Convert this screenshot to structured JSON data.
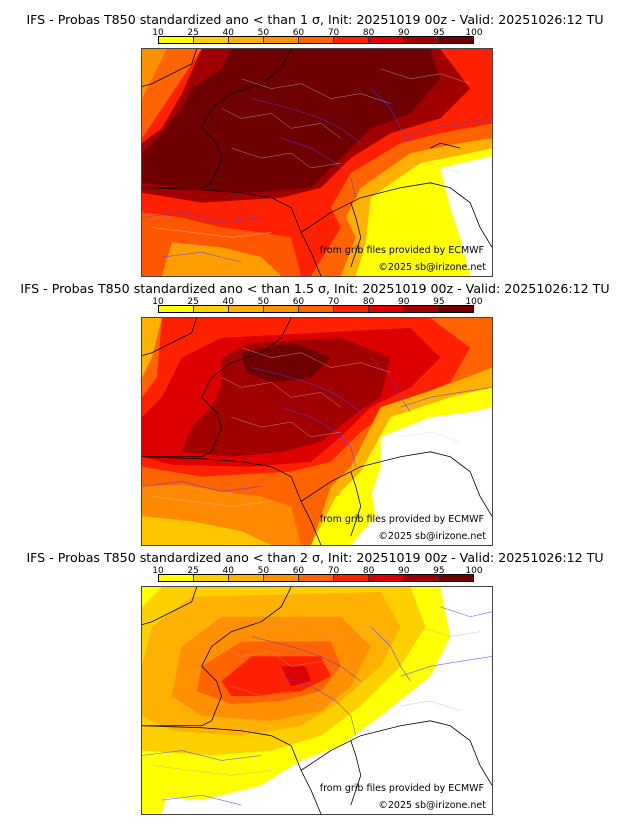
{
  "colorbar": {
    "labels": [
      "10",
      "25",
      "40",
      "50",
      "60",
      "70",
      "80",
      "90",
      "95",
      "100"
    ],
    "colors": [
      "#ffff00",
      "#ffd000",
      "#ffb000",
      "#ff9000",
      "#ff6400",
      "#ff2000",
      "#dc0000",
      "#a00000",
      "#6e0000"
    ]
  },
  "panels": [
    {
      "title": "IFS - Probas T850  standardized ano < than 1 σ, Init: 20251019 00z - Valid: 20251026:12 TU",
      "threshold": "1 σ",
      "credit_source": "from grib files provided by ECMWF",
      "credit_copyright": "©2025 sb@irizone.net"
    },
    {
      "title": "IFS - Probas T850  standardized ano < than 1.5 σ, Init: 20251019 00z - Valid: 20251026:12 TU",
      "threshold": "1.5 σ",
      "credit_source": "from grib files provided by ECMWF",
      "credit_copyright": "©2025 sb@irizone.net"
    },
    {
      "title": "IFS - Probas T850  standardized ano < than 2 σ, Init: 20251019 00z - Valid: 20251026:12 TU",
      "threshold": "2 σ",
      "credit_source": "from grib files provided by ECMWF",
      "credit_copyright": "©2025 sb@irizone.net"
    }
  ]
}
